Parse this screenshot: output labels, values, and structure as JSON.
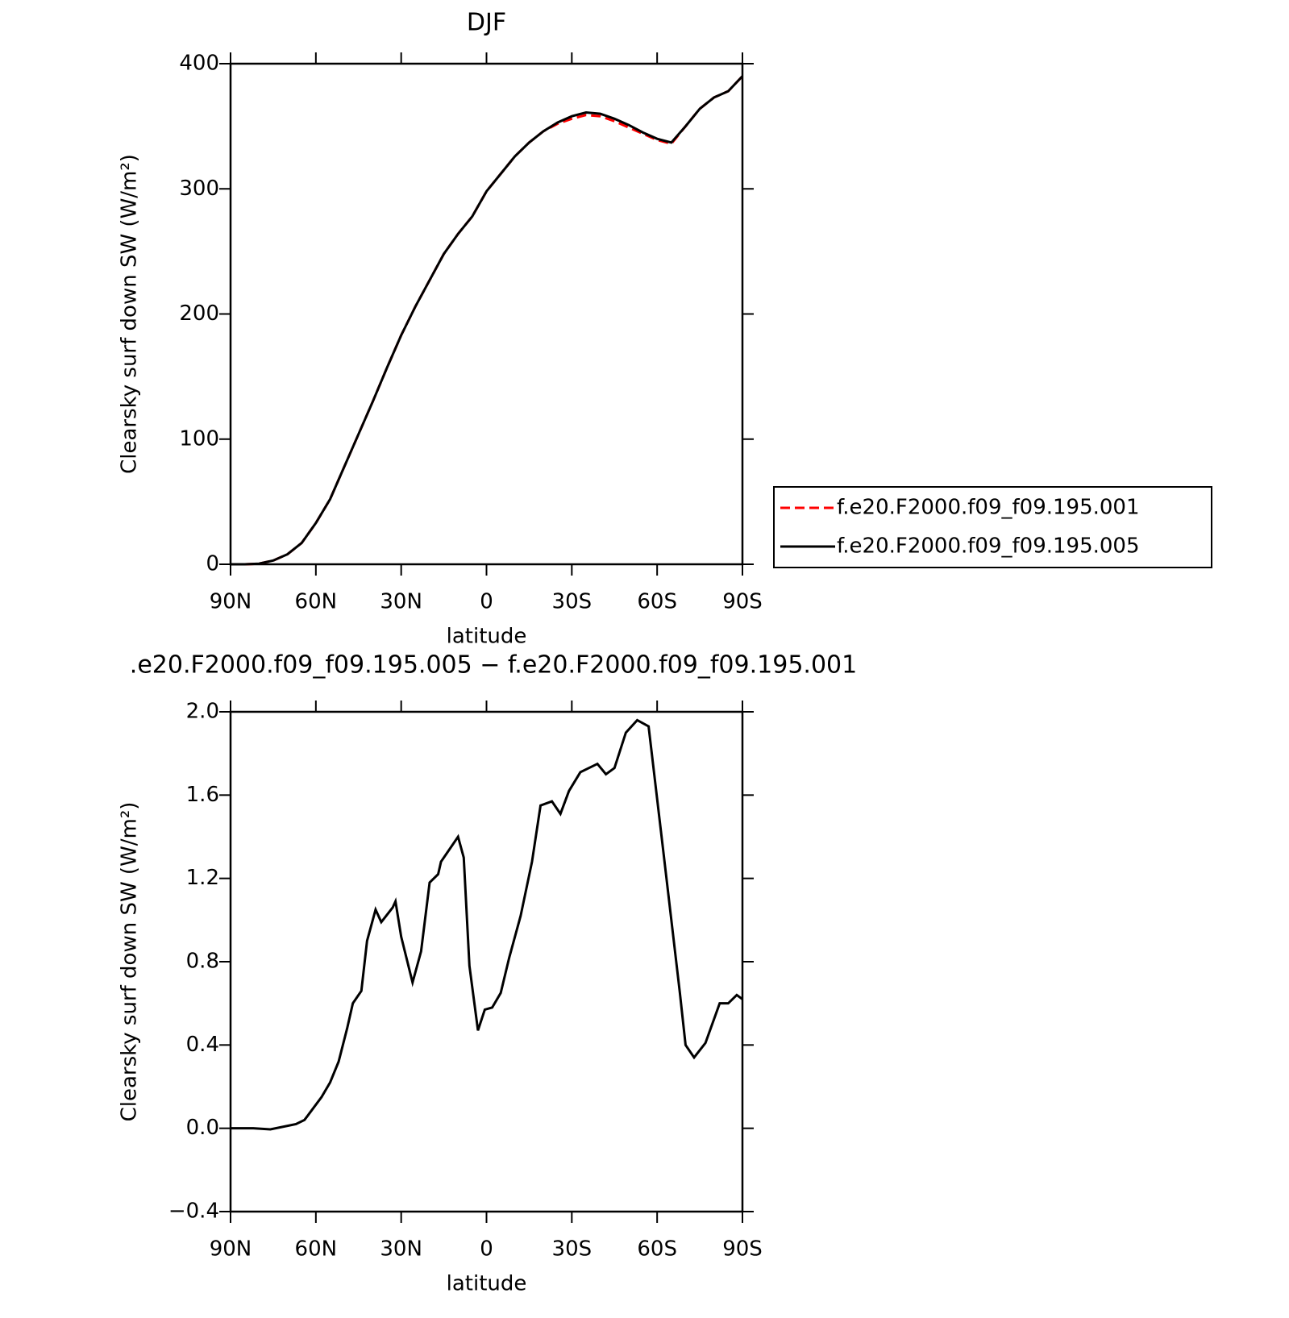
{
  "chart_data": [
    {
      "type": "line",
      "title": "DJF",
      "xlabel": "latitude",
      "ylabel": "Clearsky surf down SW (W/m²)",
      "x": [
        90,
        85,
        80,
        75,
        70,
        65,
        60,
        55,
        50,
        45,
        40,
        35,
        30,
        25,
        20,
        15,
        10,
        5,
        0,
        -5,
        -10,
        -15,
        -20,
        -25,
        -30,
        -35,
        -40,
        -45,
        -50,
        -55,
        -60,
        -65,
        -70,
        -75,
        -80,
        -85,
        -90
      ],
      "xlim": [
        90,
        -90
      ],
      "xticks": [
        {
          "value": 90,
          "label": "90N"
        },
        {
          "value": 60,
          "label": "60N"
        },
        {
          "value": 30,
          "label": "30N"
        },
        0,
        {
          "value": -30,
          "label": "30S"
        },
        {
          "value": -60,
          "label": "60S"
        },
        {
          "value": -90,
          "label": "90S"
        }
      ],
      "ylim": [
        0,
        400
      ],
      "yticks": [
        0,
        100,
        200,
        300,
        400
      ],
      "legend": "right",
      "series": [
        {
          "name": "f.e20.F2000.f09_f09.195.001",
          "color": "#ff0000",
          "linestyle": "dashed",
          "values": [
            0,
            0,
            0.5,
            3,
            8,
            17,
            33,
            52,
            78,
            104,
            130,
            157,
            183,
            206,
            227,
            248,
            264,
            278,
            298,
            312,
            326,
            337,
            346,
            352,
            356,
            359,
            358,
            354,
            349,
            344,
            339,
            336,
            350,
            364,
            373,
            378,
            390
          ]
        },
        {
          "name": "f.e20.F2000.f09_f09.195.005",
          "color": "#000000",
          "linestyle": "solid",
          "values": [
            0,
            0,
            0.5,
            3,
            8,
            17,
            33,
            52,
            78,
            104,
            130,
            157,
            183,
            206,
            227,
            248,
            264,
            278,
            298,
            312,
            326,
            337,
            346,
            353,
            358,
            361,
            360,
            356,
            351,
            345,
            340,
            337,
            350,
            364,
            373,
            378,
            390
          ]
        }
      ]
    },
    {
      "type": "line",
      "title": ".e20.F2000.f09_f09.195.005 − f.e20.F2000.f09_f09.195.001",
      "xlabel": "latitude",
      "ylabel": "Clearsky surf down SW (W/m²)",
      "x": [
        90,
        82,
        76,
        67,
        64,
        58,
        55,
        52,
        49,
        47,
        44,
        42,
        39,
        37,
        33,
        32,
        30,
        26,
        23,
        20,
        17,
        16,
        10,
        8,
        6,
        3,
        0.6,
        -2,
        -5,
        -8,
        -12,
        -16,
        -19,
        -23,
        -26,
        -29,
        -33,
        -39,
        -42,
        -45,
        -49,
        -53,
        -57,
        -62,
        -65,
        -68,
        -70,
        -73,
        -77,
        -82,
        -85,
        -88,
        -90
      ],
      "xlim": [
        90,
        -90
      ],
      "xticks": [
        {
          "value": 90,
          "label": "90N"
        },
        {
          "value": 60,
          "label": "60N"
        },
        {
          "value": 30,
          "label": "30N"
        },
        0,
        {
          "value": -30,
          "label": "30S"
        },
        {
          "value": -60,
          "label": "60S"
        },
        {
          "value": -90,
          "label": "90S"
        }
      ],
      "ylim": [
        -0.4,
        2.0
      ],
      "yticks": [
        {
          "value": -0.4,
          "label": "−0.4"
        },
        {
          "value": 0,
          "label": "0.0"
        },
        0.4,
        0.8,
        1.2,
        1.6,
        {
          "value": 2.0,
          "label": "2.0"
        }
      ],
      "series": [
        {
          "color": "#000000",
          "linestyle": "solid",
          "values": [
            0,
            0,
            -0.005,
            0.02,
            0.04,
            0.15,
            0.22,
            0.32,
            0.48,
            0.6,
            0.66,
            0.9,
            1.05,
            0.99,
            1.06,
            1.09,
            0.92,
            0.7,
            0.85,
            1.18,
            1.22,
            1.28,
            1.4,
            1.3,
            0.78,
            0.47,
            0.57,
            0.58,
            0.65,
            0.82,
            1.02,
            1.28,
            1.55,
            1.57,
            1.51,
            1.62,
            1.71,
            1.75,
            1.7,
            1.73,
            1.9,
            1.96,
            1.93,
            1.35,
            1.0,
            0.65,
            0.4,
            0.34,
            0.41,
            0.6,
            0.6,
            0.64,
            0.62
          ]
        }
      ]
    }
  ]
}
